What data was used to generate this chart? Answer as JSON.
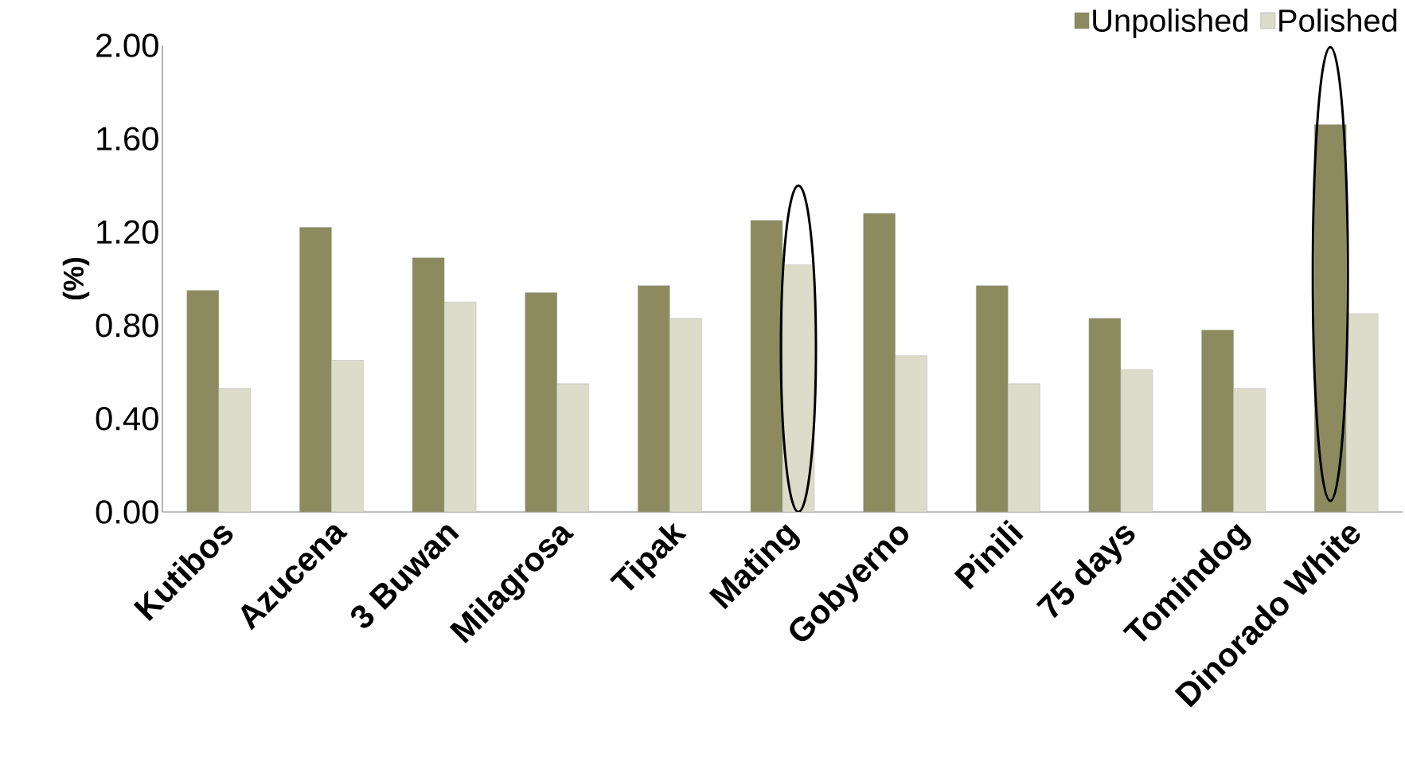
{
  "chart_data": {
    "type": "bar",
    "ylabel": "(%)",
    "categories": [
      "Kutibos",
      "Azucena",
      "3 Buwan",
      "Milagrosa",
      "Tipak",
      "Mating",
      "Gobyerno",
      "Pinili",
      "75 days",
      "Tomindog",
      "Dinorado White"
    ],
    "series": [
      {
        "name": "Unpolished",
        "color": "#8b8b5f",
        "values": [
          0.95,
          1.22,
          1.09,
          0.94,
          0.97,
          1.25,
          1.28,
          0.97,
          0.83,
          0.78,
          1.66
        ]
      },
      {
        "name": "Polished",
        "color": "#dcdccb",
        "values": [
          0.53,
          0.65,
          0.9,
          0.55,
          0.83,
          1.06,
          0.67,
          0.55,
          0.61,
          0.53,
          0.85
        ]
      }
    ],
    "ylim": [
      0,
      2
    ],
    "yticks": [
      {
        "value": 0,
        "label": "0.00"
      },
      {
        "value": 0.4,
        "label": "0.40"
      },
      {
        "value": 0.8,
        "label": "0.80"
      },
      {
        "value": 1.2,
        "label": "1.20"
      },
      {
        "value": 1.6,
        "label": "1.60"
      },
      {
        "value": 2,
        "label": "2.00"
      }
    ],
    "legend": "top right",
    "grid": false
  }
}
